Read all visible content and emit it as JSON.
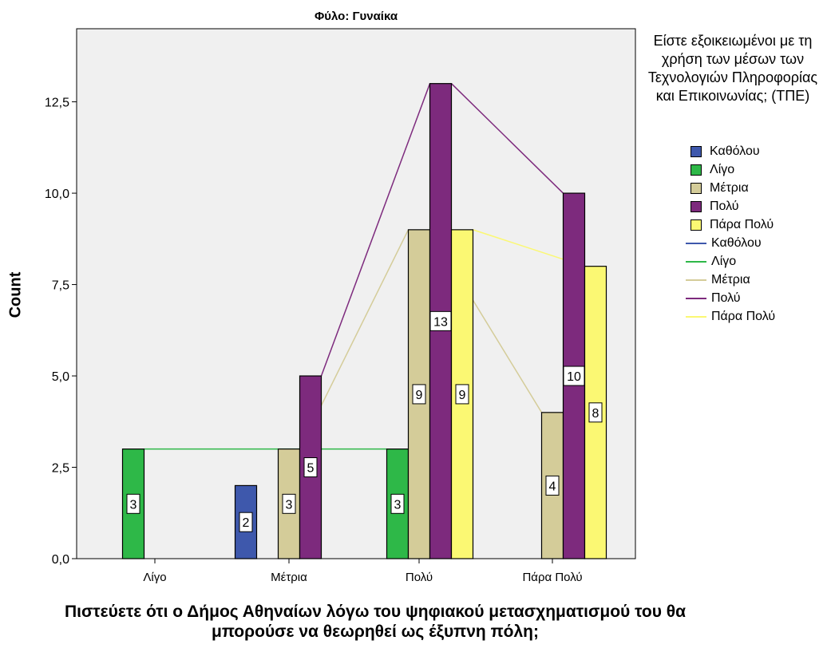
{
  "chart_data": {
    "type": "bar",
    "title": "Φύλο: Γυναίκα",
    "xlabel": "Πιστεύετε ότι ο Δήμος Αθηναίων λόγω του ψηφιακού μετασχηματισμού του  θα μπορούσε να θεωρηθεί ως έξυπνη πόλη;",
    "ylabel": "Count",
    "ylim": [
      0,
      14.5
    ],
    "yticks": [
      "0,0",
      "2,5",
      "5,0",
      "7,5",
      "10,0",
      "12,5"
    ],
    "ytick_values": [
      0,
      2.5,
      5,
      7.5,
      10,
      12.5
    ],
    "categories": [
      "Λίγο",
      "Μέτρια",
      "Πολύ",
      "Πάρα Πολύ"
    ],
    "legend_title": "Είστε εξοικειωμένοι με τη χρήση των μέσων των Τεχνολογιών Πληροφορίας και Επικοινωνίας; (ΤΠΕ)",
    "legend_position": "right",
    "grid": false,
    "series": [
      {
        "name": "Καθόλου",
        "color": "#3e58ac",
        "values": [
          null,
          2,
          null,
          null
        ]
      },
      {
        "name": "Λίγο",
        "color": "#2eb848",
        "values": [
          3,
          null,
          3,
          null
        ]
      },
      {
        "name": "Μέτρια",
        "color": "#d4cc99",
        "values": [
          null,
          3,
          9,
          4
        ]
      },
      {
        "name": "Πολύ",
        "color": "#7d2a7d",
        "values": [
          null,
          5,
          13,
          10
        ]
      },
      {
        "name": "Πάρα Πολύ",
        "color": "#fbf873",
        "values": [
          null,
          null,
          9,
          8
        ]
      }
    ],
    "line_series_names": [
      "Καθόλου",
      "Λίγο",
      "Μέτρια",
      "Πολύ",
      "Πάρα Πολύ"
    ]
  }
}
